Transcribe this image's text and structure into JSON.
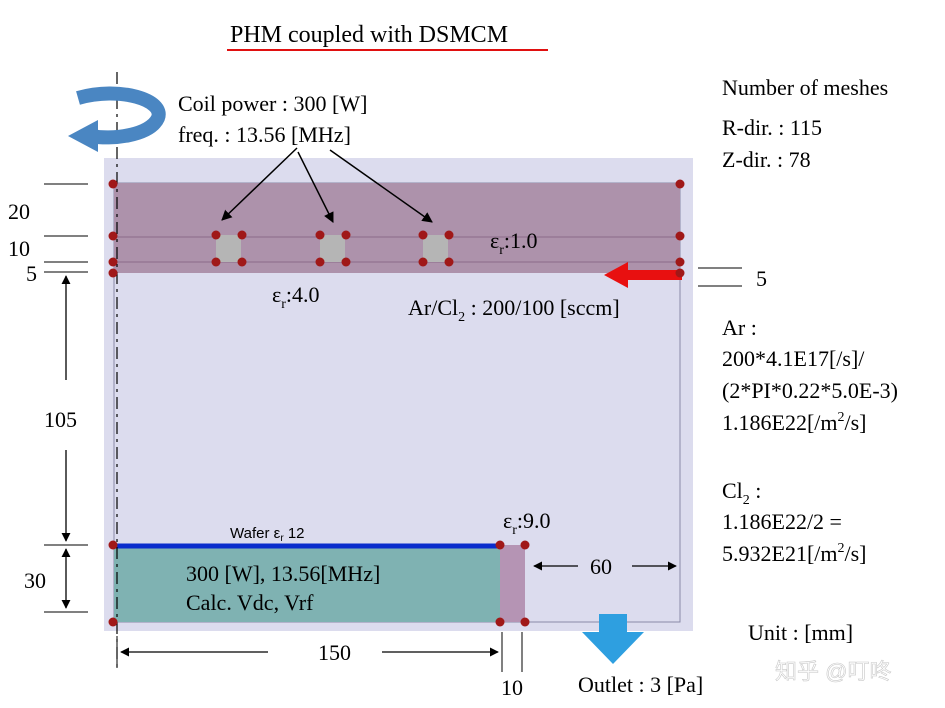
{
  "title": "PHM coupled with DSMCM",
  "coil": {
    "power": "Coil power : 300 [W]",
    "freq": "freq. : 13.56 [MHz]"
  },
  "meshes": {
    "heading": "Number of meshes",
    "r_dir": "R-dir. : 115",
    "z_dir": "Z-dir. : 78"
  },
  "eps_dielectric_top": {
    "sym": "ε",
    "sub": "r",
    "val": ":1.0"
  },
  "eps_window": {
    "sym": "ε",
    "sub": "r",
    "val": ":4.0"
  },
  "eps_ring": {
    "sym": "ε",
    "sub": "r",
    "val": ":9.0"
  },
  "gas": {
    "pre": "Ar/Cl",
    "sub": "2",
    "post": " : 200/100 [sccm]"
  },
  "inlet_dim": "5",
  "ar_calc": {
    "line1": "Ar :",
    "line2": "200*4.1E17[/s]/",
    "line3": "(2*PI*0.22*5.0E-3)",
    "line4_pre": "1.186E22[/m",
    "line4_sup": "2",
    "line4_post": "/s]"
  },
  "cl_calc": {
    "line1_pre": "Cl",
    "line1_sub": "2",
    "line1_post": " :",
    "line2": "1.186E22/2 =",
    "line3_pre": "5.932E21[/m",
    "line3_sup": "2",
    "line3_post": "/s]"
  },
  "left_dims": {
    "d20": "20",
    "d10": "10",
    "d5": "5",
    "d105": "105",
    "d30": "30"
  },
  "wafer_label": {
    "pre": "Wafer  ",
    "sym": "ε",
    "sub": "r",
    "post": " 12"
  },
  "electrode": {
    "line1": "300 [W], 13.56[MHz]",
    "line2": "Calc. Vdc, Vrf"
  },
  "bottom_dims": {
    "d150": "150",
    "d10": "10",
    "d60": "60"
  },
  "unit": "Unit : [mm]",
  "outlet": "Outlet :  3 [Pa]",
  "watermark": "知乎 @叮咚",
  "colors": {
    "domain": "#dcdcee",
    "dielectric": "#ad92ab",
    "electrode": "#7fb2b2",
    "ring": "#b594b4",
    "wafer": "#0a2ccc",
    "node": "#a01818",
    "coil": "#b5b5b5",
    "inlet_arrow": "#e81010",
    "outlet_arrow": "#2e9fe0",
    "rotate_arrow": "#4a86c2",
    "title_underline": "#e01010"
  }
}
